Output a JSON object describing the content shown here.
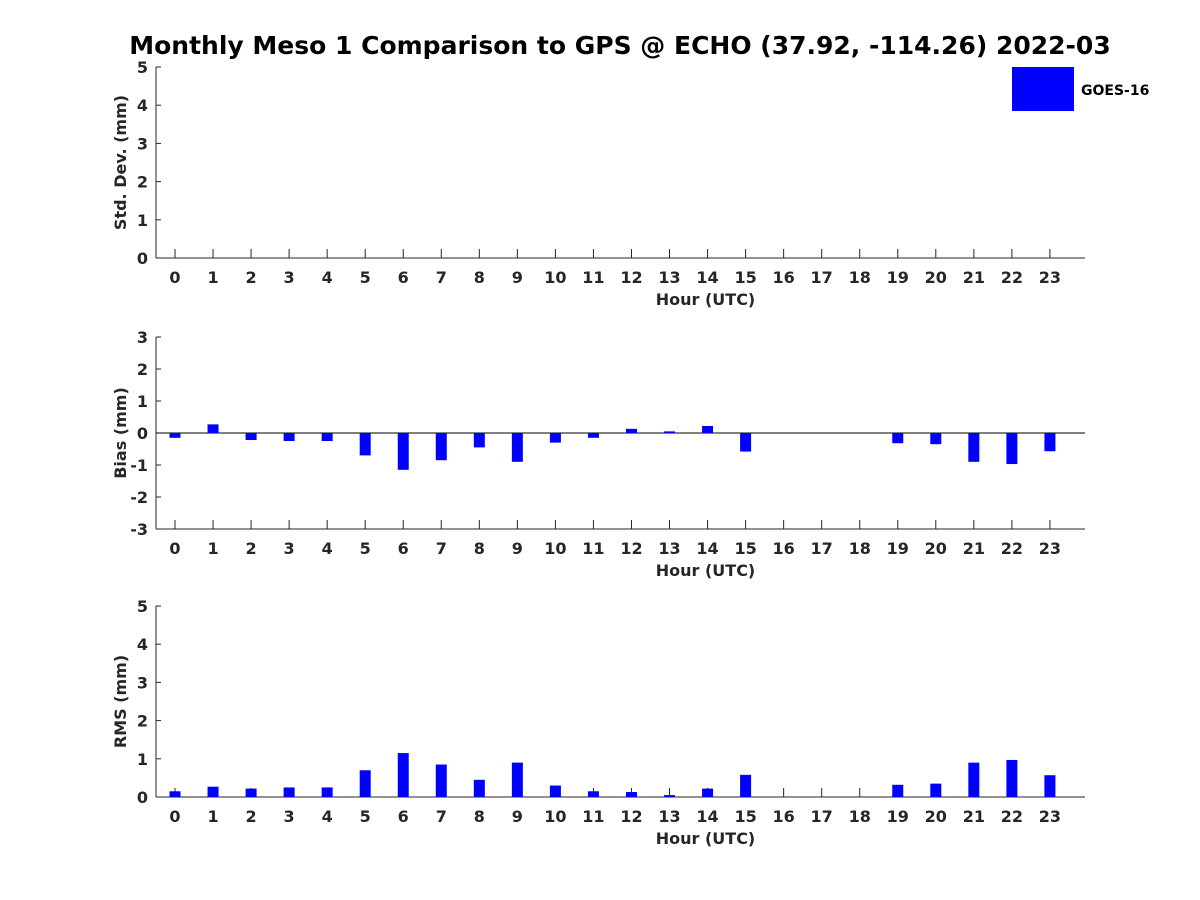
{
  "title": "Monthly Meso 1 Comparison to GPS @ ECHO (37.92, -114.26) 2022-03",
  "colors": {
    "bar": "#0000ff",
    "axis": "#262626"
  },
  "legend": {
    "label": "GOES-16",
    "placement": "top-right"
  },
  "chart_data": [
    {
      "type": "bar",
      "ylabel": "Std. Dev. (mm)",
      "xlabel": "Hour (UTC)",
      "ylim": [
        0,
        5
      ],
      "yticks": [
        0,
        1,
        2,
        3,
        4,
        5
      ],
      "categories": [
        "0",
        "1",
        "2",
        "3",
        "4",
        "5",
        "6",
        "7",
        "8",
        "9",
        "10",
        "11",
        "12",
        "13",
        "14",
        "15",
        "16",
        "17",
        "18",
        "19",
        "20",
        "21",
        "22",
        "23"
      ],
      "series": [
        {
          "name": "GOES-16",
          "values": [
            0,
            0,
            0,
            0,
            0,
            0,
            0,
            0,
            0,
            0,
            0,
            0,
            0,
            0,
            0,
            0,
            0,
            0,
            0,
            0,
            0,
            0,
            0,
            0
          ]
        }
      ],
      "grid": false
    },
    {
      "type": "bar",
      "ylabel": "Bias (mm)",
      "xlabel": "Hour (UTC)",
      "ylim": [
        -3,
        3
      ],
      "yticks": [
        -3,
        -2,
        -1,
        0,
        1,
        2,
        3
      ],
      "categories": [
        "0",
        "1",
        "2",
        "3",
        "4",
        "5",
        "6",
        "7",
        "8",
        "9",
        "10",
        "11",
        "12",
        "13",
        "14",
        "15",
        "16",
        "17",
        "18",
        "19",
        "20",
        "21",
        "22",
        "23"
      ],
      "series": [
        {
          "name": "GOES-16",
          "values": [
            -0.15,
            0.27,
            -0.22,
            -0.25,
            -0.25,
            -0.7,
            -1.15,
            -0.85,
            -0.45,
            -0.9,
            -0.3,
            -0.15,
            0.13,
            0.05,
            0.22,
            -0.58,
            0,
            0,
            0,
            -0.32,
            -0.35,
            -0.9,
            -0.97,
            -0.57
          ]
        }
      ],
      "grid": false
    },
    {
      "type": "bar",
      "ylabel": "RMS (mm)",
      "xlabel": "Hour (UTC)",
      "ylim": [
        0,
        5
      ],
      "yticks": [
        0,
        1,
        2,
        3,
        4,
        5
      ],
      "categories": [
        "0",
        "1",
        "2",
        "3",
        "4",
        "5",
        "6",
        "7",
        "8",
        "9",
        "10",
        "11",
        "12",
        "13",
        "14",
        "15",
        "16",
        "17",
        "18",
        "19",
        "20",
        "21",
        "22",
        "23"
      ],
      "series": [
        {
          "name": "GOES-16",
          "values": [
            0.15,
            0.27,
            0.22,
            0.25,
            0.25,
            0.7,
            1.15,
            0.85,
            0.45,
            0.9,
            0.3,
            0.15,
            0.13,
            0.05,
            0.22,
            0.58,
            0,
            0,
            0,
            0.32,
            0.35,
            0.9,
            0.97,
            0.57
          ]
        }
      ],
      "grid": false
    }
  ]
}
